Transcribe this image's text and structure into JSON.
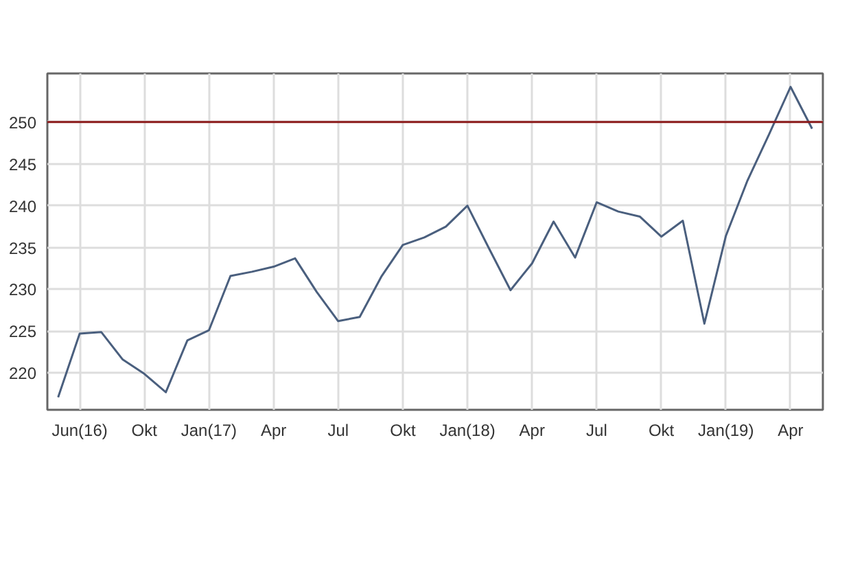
{
  "chart_data": {
    "type": "line",
    "categories": [
      null,
      "Jun(16)",
      null,
      null,
      "Okt",
      null,
      null,
      "Jan(17)",
      null,
      null,
      "Apr",
      null,
      null,
      "Jul",
      null,
      null,
      "Okt",
      null,
      null,
      "Jan(18)",
      null,
      null,
      "Apr",
      null,
      null,
      "Jul",
      null,
      null,
      "Okt",
      null,
      null,
      "Jan(19)",
      null,
      null,
      "Apr",
      null
    ],
    "series": [
      {
        "color": "#4a5f7e",
        "values": [
          217.1,
          224.7,
          224.9,
          221.6,
          219.9,
          217.7,
          223.9,
          225.1,
          231.6,
          232.1,
          232.7,
          233.7,
          229.7,
          226.2,
          226.7,
          231.5,
          235.3,
          236.2,
          237.5,
          240.0,
          234.9,
          229.9,
          233.1,
          238.1,
          233.8,
          240.4,
          239.3,
          238.7,
          236.3,
          238.2,
          225.9,
          236.4,
          243.0,
          248.5,
          254.2,
          249.2
        ]
      }
    ],
    "ylim": [
      215.6,
      255.8
    ],
    "yticks": [
      220,
      225,
      230,
      235,
      240,
      245,
      250
    ],
    "ref_lines": [
      {
        "axis": "y",
        "value": 250,
        "color": "#8b1a1a"
      }
    ],
    "grid": true,
    "marker": "none",
    "line_style": "solid"
  }
}
